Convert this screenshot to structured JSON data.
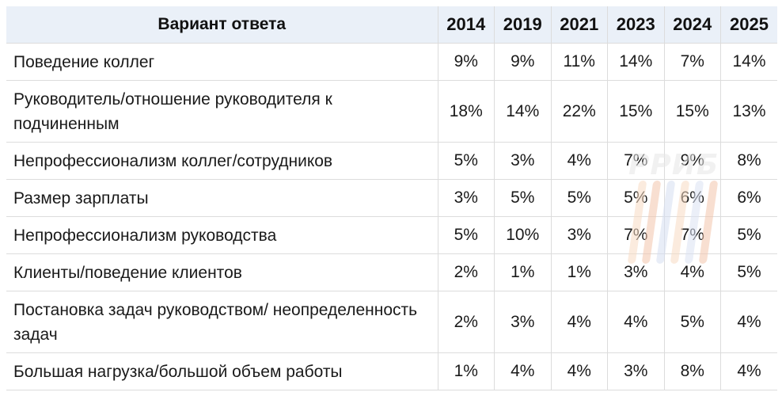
{
  "table": {
    "header_answer": "Вариант ответа",
    "years": [
      "2014",
      "2019",
      "2021",
      "2023",
      "2024",
      "2025"
    ],
    "rows": [
      {
        "answer": "Поведение коллег",
        "values": [
          "9%",
          "9%",
          "11%",
          "14%",
          "7%",
          "14%"
        ],
        "lines": 1
      },
      {
        "answer": "Руководитель/отношение руководителя к подчиненным",
        "values": [
          "18%",
          "14%",
          "22%",
          "15%",
          "15%",
          "13%"
        ],
        "lines": 2
      },
      {
        "answer": "Непрофессионализм коллег/сотрудников",
        "values": [
          "5%",
          "3%",
          "4%",
          "7%",
          "9%",
          "8%"
        ],
        "lines": 1
      },
      {
        "answer": "Размер зарплаты",
        "values": [
          "3%",
          "5%",
          "5%",
          "5%",
          "6%",
          "6%"
        ],
        "lines": 1
      },
      {
        "answer": "Непрофессионализм руководства",
        "values": [
          "5%",
          "10%",
          "3%",
          "7%",
          "7%",
          "5%"
        ],
        "lines": 1
      },
      {
        "answer": "Клиенты/поведение клиентов",
        "values": [
          "2%",
          "1%",
          "1%",
          "3%",
          "4%",
          "5%"
        ],
        "lines": 1
      },
      {
        "answer": "Постановка задач руководством/ неопределенность задач",
        "values": [
          "2%",
          "3%",
          "4%",
          "4%",
          "5%",
          "4%"
        ],
        "lines": 2
      },
      {
        "answer": "Большая нагрузка/большой объем работы",
        "values": [
          "1%",
          "4%",
          "4%",
          "3%",
          "8%",
          "4%"
        ],
        "lines": 1
      }
    ]
  },
  "watermark": {
    "text": "РРИБ"
  }
}
